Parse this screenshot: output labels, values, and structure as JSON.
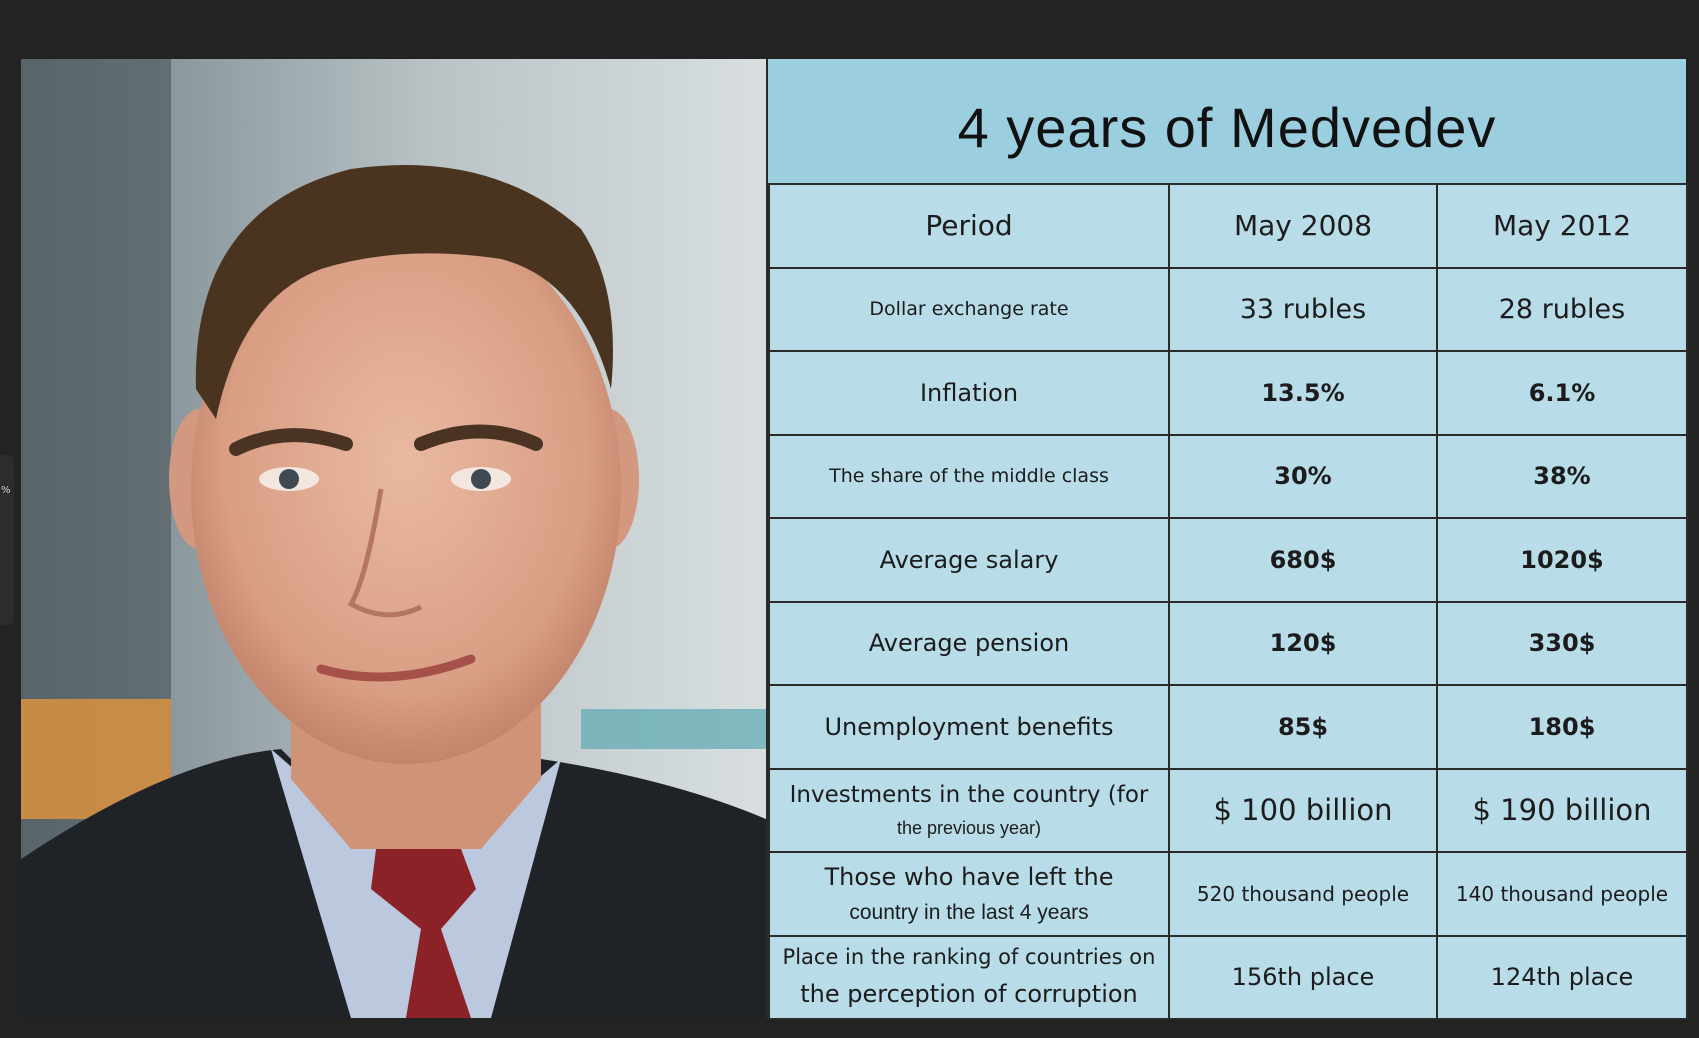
{
  "title": "4 years of Medvedev",
  "side_strip": [
    "%"
  ],
  "header": {
    "period": "Period",
    "col1": "May 2008",
    "col2": "May 2012"
  },
  "rows": [
    {
      "label": "Dollar exchange rate",
      "v2008": "33 rubles",
      "v2012": "28 rubles"
    },
    {
      "label": "Inflation",
      "v2008": "13.5%",
      "v2012": "6.1%"
    },
    {
      "label": "The share of the middle class",
      "v2008": "30%",
      "v2012": "38%"
    },
    {
      "label": "Average salary",
      "v2008": "680$",
      "v2012": "1020$"
    },
    {
      "label": "Average pension",
      "v2008": "120$",
      "v2012": "330$"
    },
    {
      "label": "Unemployment benefits",
      "v2008": "85$",
      "v2012": "180$"
    },
    {
      "label": "Investments in the country (for",
      "label_sub": "the previous year)",
      "v2008": "$ 100 billion",
      "v2012": "$ 190 billion"
    },
    {
      "label": "Those who have left the",
      "label_sub": "country in the last 4 years",
      "v2008": "520 thousand people",
      "v2012": "140 thousand people"
    },
    {
      "label": "Place in the ranking of countries on",
      "label_sub": "the perception of corruption",
      "v2008": "156th place",
      "v2012": "124th place"
    }
  ],
  "colors": {
    "background": "#232323",
    "title_bar": "#9bcfe0",
    "table_bg": "#b8dce8",
    "highlight_red": "#c0182c"
  }
}
